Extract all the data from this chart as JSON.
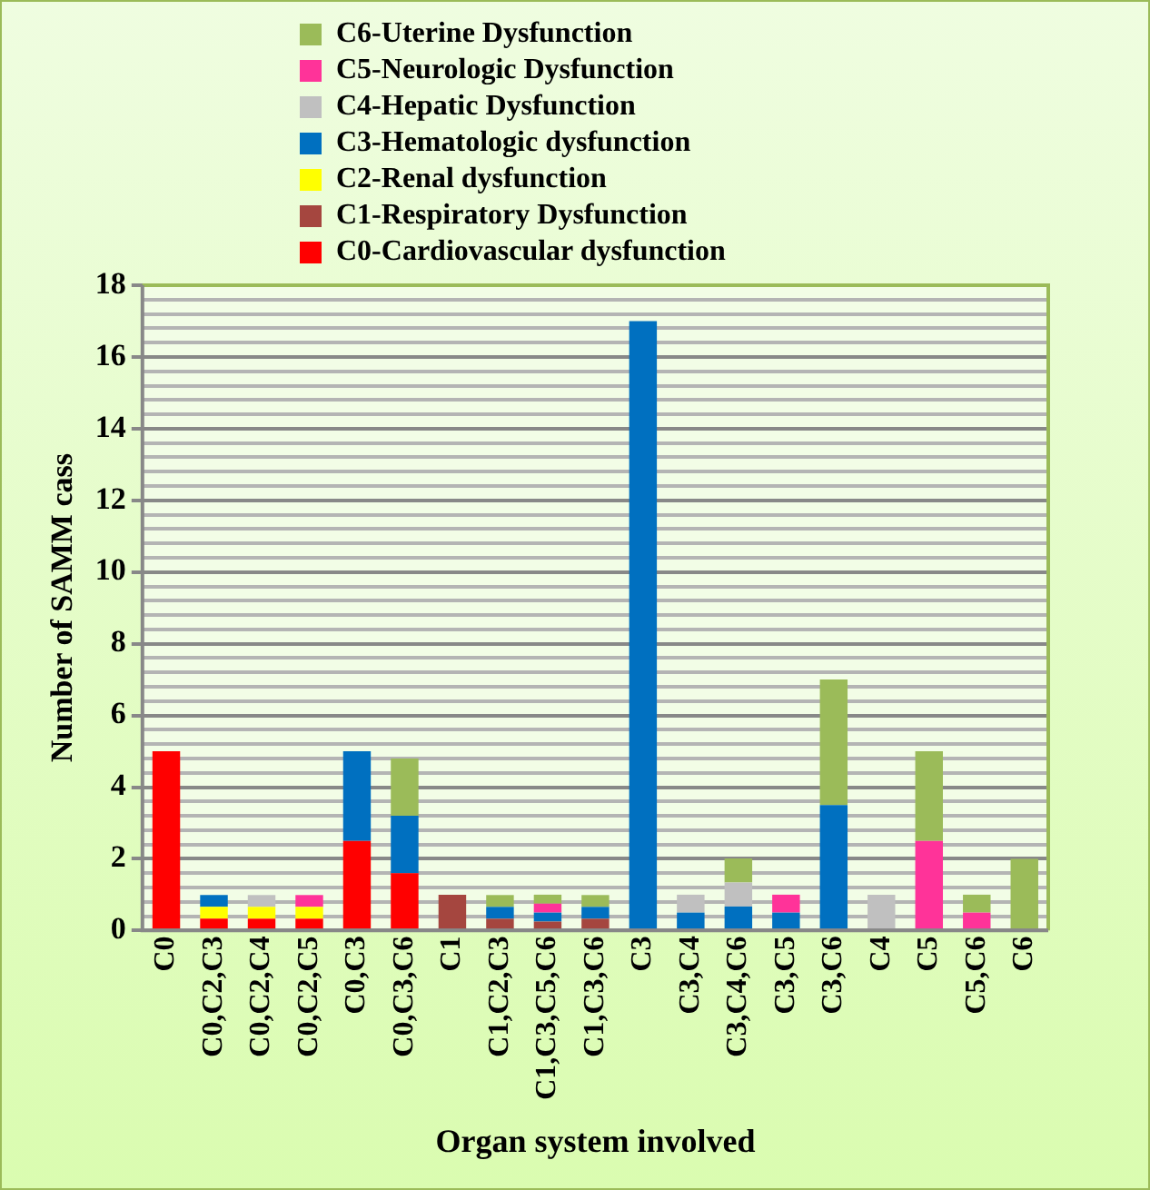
{
  "chart_data": {
    "type": "bar",
    "stacked": true,
    "xlabel": "Organ system involved",
    "ylabel": "Number of SAMM cass",
    "categories": [
      "C0",
      "C0,C2,C3",
      "C0,C2,C4",
      "C0,C2,C5",
      "C0,C3",
      "C0,C3,C6",
      "C1",
      "C1,C2,C3",
      "C1,C3,C5,C6",
      "C1,C3,C6",
      "C3",
      "C3,C4",
      "C3,C4,C6",
      "C3,C5",
      "C3,C6",
      "C4",
      "C5",
      "C5,C6",
      "C6"
    ],
    "series": [
      {
        "name": "C0-Cardiovascular dysfunction",
        "color": "#ff0000",
        "values": [
          5,
          0.33,
          0.33,
          0.33,
          2.5,
          1.6,
          null,
          null,
          null,
          null,
          null,
          null,
          null,
          null,
          null,
          null,
          null,
          null,
          null
        ]
      },
      {
        "name": "C1-Respiratory Dysfunction",
        "color": "#a5463f",
        "values": [
          null,
          null,
          null,
          null,
          null,
          null,
          1,
          0.33,
          0.25,
          0.33,
          null,
          null,
          null,
          null,
          null,
          null,
          null,
          null,
          null
        ]
      },
      {
        "name": "C2-Renal dysfunction",
        "color": "#ffff00",
        "values": [
          null,
          0.33,
          0.33,
          0.33,
          null,
          null,
          null,
          null,
          null,
          null,
          null,
          null,
          null,
          null,
          null,
          null,
          null,
          null,
          null
        ]
      },
      {
        "name": "C3-Hematologic dysfunction",
        "color": "#0070c0",
        "values": [
          null,
          0.33,
          null,
          null,
          2.5,
          1.6,
          null,
          0.33,
          0.25,
          0.33,
          17,
          0.5,
          0.67,
          0.5,
          3.5,
          null,
          null,
          null,
          null
        ]
      },
      {
        "name": "C4-Hepatic Dysfunction",
        "color": "#c0c0c0",
        "values": [
          null,
          null,
          0.33,
          null,
          null,
          null,
          null,
          null,
          null,
          null,
          null,
          0.5,
          0.67,
          null,
          null,
          1,
          null,
          null,
          null
        ]
      },
      {
        "name": "C5-Neurologic Dysfunction",
        "color": "#ff3399",
        "values": [
          null,
          null,
          null,
          0.33,
          null,
          null,
          null,
          null,
          0.25,
          null,
          null,
          null,
          null,
          0.5,
          null,
          null,
          2.5,
          0.5,
          null
        ]
      },
      {
        "name": "C6-Uterine Dysfunction",
        "color": "#9bbb59",
        "values": [
          null,
          null,
          null,
          null,
          null,
          1.6,
          null,
          0.33,
          0.25,
          0.33,
          null,
          null,
          0.67,
          null,
          3.5,
          null,
          2.5,
          0.5,
          2
        ]
      }
    ],
    "ylim": [
      0,
      18
    ],
    "yticks": [
      0,
      {
        "value": 0.4,
        "label": null
      },
      {
        "value": 0.8,
        "label": null
      },
      {
        "value": 1.2,
        "label": null
      },
      {
        "value": 1.6,
        "label": null
      },
      2,
      {
        "value": 2.4,
        "label": null
      },
      {
        "value": 2.8,
        "label": null
      },
      {
        "value": 3.2,
        "label": null
      },
      {
        "value": 3.6,
        "label": null
      },
      4,
      {
        "value": 4.4,
        "label": null
      },
      {
        "value": 4.8,
        "label": null
      },
      {
        "value": 5.2,
        "label": null
      },
      {
        "value": 5.6,
        "label": null
      },
      6,
      {
        "value": 6.4,
        "label": null
      },
      {
        "value": 6.8,
        "label": null
      },
      {
        "value": 7.2,
        "label": null
      },
      {
        "value": 7.6,
        "label": null
      },
      8,
      {
        "value": 8.4,
        "label": null
      },
      {
        "value": 8.8,
        "label": null
      },
      {
        "value": 9.2,
        "label": null
      },
      {
        "value": 9.6,
        "label": null
      },
      10,
      {
        "value": 10.4,
        "label": null
      },
      {
        "value": 10.8,
        "label": null
      },
      {
        "value": 11.2,
        "label": null
      },
      {
        "value": 11.6,
        "label": null
      },
      12,
      {
        "value": 12.4,
        "label": null
      },
      {
        "value": 12.8,
        "label": null
      },
      {
        "value": 13.2,
        "label": null
      },
      {
        "value": 13.6,
        "label": null
      },
      14,
      {
        "value": 14.4,
        "label": null
      },
      {
        "value": 14.8,
        "label": null
      },
      {
        "value": 15.2,
        "label": null
      },
      {
        "value": 15.6,
        "label": null
      },
      16,
      {
        "value": 16.4,
        "label": null
      },
      {
        "value": 16.8,
        "label": null
      },
      {
        "value": 17.2,
        "label": null
      },
      {
        "value": 17.6,
        "label": null
      },
      18
    ],
    "grid": "y",
    "legend": "top"
  }
}
